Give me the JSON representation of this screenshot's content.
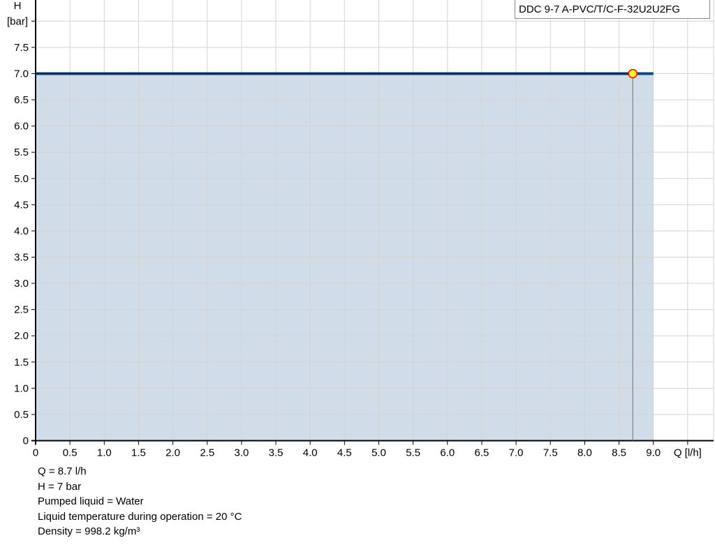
{
  "chart_data": {
    "type": "area",
    "title": "",
    "legend": {
      "label": "DDC 9-7 A-PVC/T/C-F-32U2U2FG",
      "placement": "top-right"
    },
    "xlabel": "Q [l/h]",
    "ylabel_line1": "H",
    "ylabel_line2": "[bar]",
    "xlim": [
      0,
      10
    ],
    "ylim": [
      0,
      8.4
    ],
    "grid": true,
    "x_ticks": [
      "0",
      "0.5",
      "1.0",
      "1.5",
      "2.0",
      "2.5",
      "3.0",
      "3.5",
      "4.0",
      "4.5",
      "5.0",
      "5.5",
      "6.0",
      "6.5",
      "7.0",
      "7.5",
      "8.0",
      "8.5",
      "9.0"
    ],
    "y_ticks": [
      "0",
      "0.5",
      "1.0",
      "1.5",
      "2.0",
      "2.5",
      "3.0",
      "3.5",
      "4.0",
      "4.5",
      "5.0",
      "5.5",
      "6.0",
      "6.5",
      "7.0",
      "7.5"
    ],
    "series": [
      {
        "x": [
          0,
          9.0
        ],
        "y": [
          7.0,
          7.0
        ]
      }
    ],
    "area": {
      "x": [
        0,
        9.0
      ],
      "y": [
        7.0,
        7.0
      ]
    },
    "operating_point": {
      "x": 8.7,
      "y": 7.0
    },
    "colors": {
      "curve": "#0a4a86",
      "curve_used": "#0b1b33",
      "area": "#d0dce7",
      "grid": "#d3d3d3",
      "point_fill": "#ffff00",
      "point_stroke": "#ff0000",
      "dropline": "#808080"
    }
  },
  "info": [
    "Q = 8.7 l/h",
    "H = 7 bar",
    "Pumped liquid = Water",
    "Liquid temperature during operation = 20 °C",
    "Density = 998.2 kg/m³"
  ]
}
